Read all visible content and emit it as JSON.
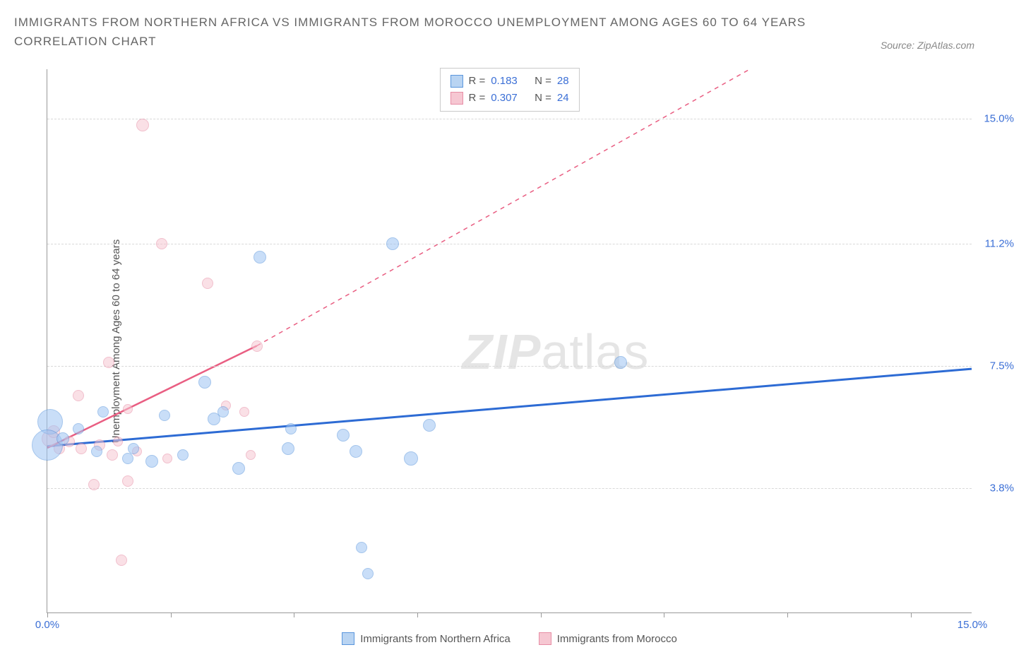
{
  "title_line1": "Immigrants from Northern Africa vs Immigrants from Morocco Unemployment Among Ages 60 to 64 years",
  "title_line2": "Correlation Chart",
  "source_prefix": "Source: ",
  "source_name": "ZipAtlas.com",
  "y_axis_label": "Unemployment Among Ages 60 to 64 years",
  "watermark_a": "ZIP",
  "watermark_b": "atlas",
  "chart": {
    "type": "scatter",
    "xlim": [
      0,
      15
    ],
    "ylim": [
      0,
      16.5
    ],
    "background_color": "#ffffff",
    "grid_color": "#d8d8d8",
    "axis_color": "#999999",
    "tick_label_color": "#3b6fd6",
    "y_gridlines": [
      3.8,
      7.5,
      11.2,
      15.0
    ],
    "y_tick_labels": [
      "3.8%",
      "7.5%",
      "11.2%",
      "15.0%"
    ],
    "x_ticks": [
      0,
      2.0,
      4.0,
      6.0,
      8.0,
      10.0,
      12.0,
      14.0
    ],
    "x_tick_labels": {
      "0": "0.0%",
      "15": "15.0%"
    }
  },
  "stats": {
    "r_label": "R =",
    "n_label": "N =",
    "rows": [
      {
        "color": "blue",
        "r": "0.183",
        "n": "28"
      },
      {
        "color": "pink",
        "r": "0.307",
        "n": "24"
      }
    ]
  },
  "legend": {
    "series1_label": "Immigrants from Northern Africa",
    "series2_label": "Immigrants from Morocco",
    "series1_colors": {
      "fill": "#b9d4f2",
      "stroke": "#5a96dd"
    },
    "series2_colors": {
      "fill": "#f6c7d2",
      "stroke": "#e78da5"
    }
  },
  "series_blue": {
    "color_fill": "#9ec4f3",
    "color_stroke": "#5a96dd",
    "trend_color": "#2d6bd4",
    "trend": {
      "x1": 0,
      "y1": 5.05,
      "x2": 15,
      "y2": 7.4
    },
    "points": [
      {
        "x": 0.05,
        "y": 5.8,
        "r": 18
      },
      {
        "x": 0.0,
        "y": 5.1,
        "r": 22
      },
      {
        "x": 0.25,
        "y": 5.3,
        "r": 9
      },
      {
        "x": 0.5,
        "y": 5.6,
        "r": 8
      },
      {
        "x": 0.8,
        "y": 4.9,
        "r": 8
      },
      {
        "x": 0.9,
        "y": 6.1,
        "r": 8
      },
      {
        "x": 1.3,
        "y": 4.7,
        "r": 8
      },
      {
        "x": 1.4,
        "y": 5.0,
        "r": 8
      },
      {
        "x": 1.7,
        "y": 4.6,
        "r": 9
      },
      {
        "x": 1.9,
        "y": 6.0,
        "r": 8
      },
      {
        "x": 2.2,
        "y": 4.8,
        "r": 8
      },
      {
        "x": 2.55,
        "y": 7.0,
        "r": 9
      },
      {
        "x": 2.7,
        "y": 5.9,
        "r": 9
      },
      {
        "x": 2.85,
        "y": 6.1,
        "r": 8
      },
      {
        "x": 3.1,
        "y": 4.4,
        "r": 9
      },
      {
        "x": 3.45,
        "y": 10.8,
        "r": 9
      },
      {
        "x": 3.9,
        "y": 5.0,
        "r": 9
      },
      {
        "x": 3.95,
        "y": 5.6,
        "r": 8
      },
      {
        "x": 4.8,
        "y": 5.4,
        "r": 9
      },
      {
        "x": 5.0,
        "y": 4.9,
        "r": 9
      },
      {
        "x": 5.1,
        "y": 2.0,
        "r": 8
      },
      {
        "x": 5.2,
        "y": 1.2,
        "r": 8
      },
      {
        "x": 5.6,
        "y": 11.2,
        "r": 9
      },
      {
        "x": 5.9,
        "y": 4.7,
        "r": 10
      },
      {
        "x": 6.2,
        "y": 5.7,
        "r": 9
      },
      {
        "x": 9.3,
        "y": 7.6,
        "r": 9
      }
    ]
  },
  "series_pink": {
    "color_fill": "#f6c7d2",
    "color_stroke": "#e78da5",
    "trend_color": "#e95e82",
    "trend_solid": {
      "x1": 0,
      "y1": 5.0,
      "x2": 3.4,
      "y2": 8.1
    },
    "trend_dash": {
      "x1": 3.4,
      "y1": 8.1,
      "x2": 11.4,
      "y2": 16.5
    },
    "points": [
      {
        "x": 0.05,
        "y": 5.3,
        "r": 12
      },
      {
        "x": 0.1,
        "y": 5.5,
        "r": 9
      },
      {
        "x": 0.2,
        "y": 5.0,
        "r": 8
      },
      {
        "x": 0.35,
        "y": 5.2,
        "r": 8
      },
      {
        "x": 0.5,
        "y": 6.6,
        "r": 8
      },
      {
        "x": 0.55,
        "y": 5.0,
        "r": 8
      },
      {
        "x": 0.75,
        "y": 3.9,
        "r": 8
      },
      {
        "x": 0.85,
        "y": 5.1,
        "r": 8
      },
      {
        "x": 1.0,
        "y": 7.6,
        "r": 8
      },
      {
        "x": 1.05,
        "y": 4.8,
        "r": 8
      },
      {
        "x": 1.15,
        "y": 5.2,
        "r": 7
      },
      {
        "x": 1.2,
        "y": 1.6,
        "r": 8
      },
      {
        "x": 1.3,
        "y": 4.0,
        "r": 8
      },
      {
        "x": 1.3,
        "y": 6.2,
        "r": 7
      },
      {
        "x": 1.45,
        "y": 4.9,
        "r": 7
      },
      {
        "x": 1.55,
        "y": 14.8,
        "r": 9
      },
      {
        "x": 1.85,
        "y": 11.2,
        "r": 8
      },
      {
        "x": 1.95,
        "y": 4.7,
        "r": 7
      },
      {
        "x": 2.6,
        "y": 10.0,
        "r": 8
      },
      {
        "x": 2.9,
        "y": 6.3,
        "r": 7
      },
      {
        "x": 3.2,
        "y": 6.1,
        "r": 7
      },
      {
        "x": 3.3,
        "y": 4.8,
        "r": 7
      },
      {
        "x": 3.4,
        "y": 8.1,
        "r": 8
      }
    ]
  }
}
